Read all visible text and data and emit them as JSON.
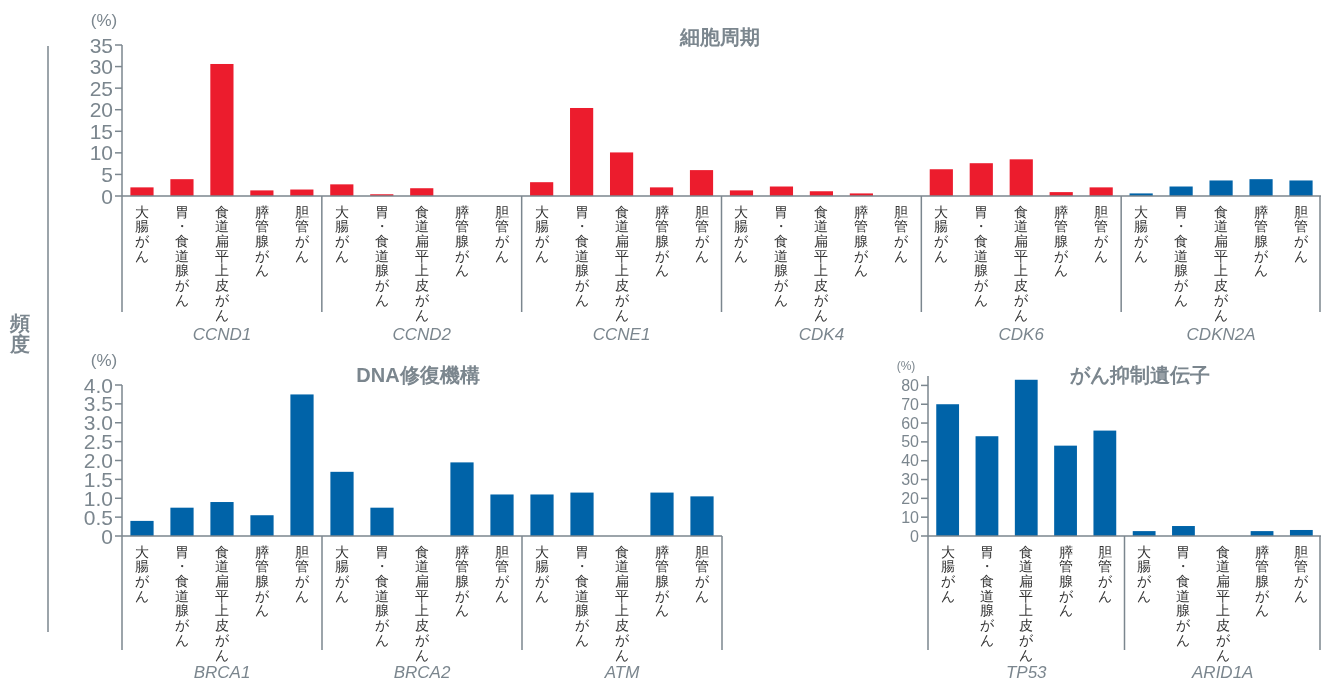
{
  "chart_data": [
    {
      "type": "bar",
      "title": "細胞周期",
      "ylabel": "(%)",
      "categories": [
        "大腸がん",
        "胃・食道腺がん",
        "食道扁平上皮がん",
        "膵管腺がん",
        "胆管がん",
        "大腸がん",
        "胃・食道腺がん",
        "食道扁平上皮がん",
        "膵管腺がん",
        "胆管がん",
        "大腸がん",
        "胃・食道腺がん",
        "食道扁平上皮がん",
        "膵管腺がん",
        "胆管がん",
        "大腸がん",
        "胃・食道腺がん",
        "食道扁平上皮がん",
        "膵管腺がん",
        "胆管がん",
        "大腸がん",
        "胃・食道腺がん",
        "食道扁平上皮がん",
        "膵管腺がん",
        "胆管がん",
        "大腸がん",
        "胃・食道腺がん",
        "食道扁平上皮がん",
        "膵管腺がん",
        "胆管がん"
      ],
      "values": [
        2.0,
        3.9,
        30.6,
        1.3,
        1.5,
        2.7,
        0.4,
        1.8,
        0,
        0,
        3.2,
        20.4,
        10.1,
        2.0,
        6.0,
        1.3,
        2.2,
        1.1,
        0.6,
        0,
        6.2,
        7.6,
        8.5,
        0.9,
        2.0,
        0.6,
        2.2,
        3.6,
        3.9,
        3.6
      ],
      "colors": [
        "#ec1c2d",
        "#ec1c2d",
        "#ec1c2d",
        "#ec1c2d",
        "#ec1c2d",
        "#ec1c2d",
        "#ec1c2d",
        "#ec1c2d",
        "#ec1c2d",
        "#ec1c2d",
        "#ec1c2d",
        "#ec1c2d",
        "#ec1c2d",
        "#ec1c2d",
        "#ec1c2d",
        "#ec1c2d",
        "#ec1c2d",
        "#ec1c2d",
        "#ec1c2d",
        "#ec1c2d",
        "#ec1c2d",
        "#ec1c2d",
        "#ec1c2d",
        "#ec1c2d",
        "#ec1c2d",
        "#0063a8",
        "#0063a8",
        "#0063a8",
        "#0063a8",
        "#0063a8"
      ],
      "ylim": [
        0,
        35
      ],
      "yticks": [
        0,
        5,
        10,
        15,
        20,
        25,
        30,
        35
      ],
      "annotations": [
        "頻度",
        "CCND1",
        "CCND2",
        "CCNE1",
        "CDK4",
        "CDK6",
        "CDKN2A"
      ]
    },
    {
      "type": "bar",
      "title": "DNA修復機構",
      "ylabel": "(%)",
      "categories": [
        "大腸がん",
        "胃・食道腺がん",
        "食道扁平上皮がん",
        "膵管腺がん",
        "胆管がん",
        "大腸がん",
        "胃・食道腺がん",
        "食道扁平上皮がん",
        "膵管腺がん",
        "胆管がん",
        "大腸がん",
        "胃・食道腺がん",
        "食道扁平上皮がん",
        "膵管腺がん",
        "胆管がん"
      ],
      "values": [
        0.4,
        0.75,
        0.9,
        0.55,
        3.75,
        1.7,
        0.75,
        0,
        1.95,
        1.1,
        1.1,
        1.15,
        0,
        1.15,
        1.05
      ],
      "color": "#0063a8",
      "ylim": [
        0,
        4
      ],
      "yticks": [
        0,
        {
          "value": 0.5,
          "label": "0.5"
        },
        {
          "value": 1,
          "label": "1.0"
        },
        {
          "value": 1.5,
          "label": "1.5"
        },
        {
          "value": 2,
          "label": "2.0"
        },
        {
          "value": 2.5,
          "label": "2.5"
        },
        {
          "value": 3,
          "label": "3.0"
        },
        {
          "value": 3.5,
          "label": "3.5"
        },
        {
          "value": 4,
          "label": "4.0"
        }
      ],
      "annotations": [
        "BRCA1",
        "BRCA2",
        "ATM"
      ]
    },
    {
      "type": "bar",
      "title": "がん抑制遺伝子",
      "ylabel": "(%)",
      "categories": [
        "大腸がん",
        "胃・食道腺がん",
        "食道扁平上皮がん",
        "膵管腺がん",
        "胆管がん",
        "大腸がん",
        "胃・食道腺がん",
        "食道扁平上皮がん",
        "膵管腺がん",
        "胆管がん"
      ],
      "values": [
        70,
        53,
        83,
        48,
        56,
        2.6,
        5.3,
        0,
        2.6,
        3.2
      ],
      "color": "#0063a8",
      "ylim": [
        0,
        85
      ],
      "yticks": [
        0,
        10,
        20,
        30,
        40,
        50,
        60,
        70,
        80
      ],
      "annotations": [
        "TP53",
        "ARID1A"
      ]
    }
  ]
}
